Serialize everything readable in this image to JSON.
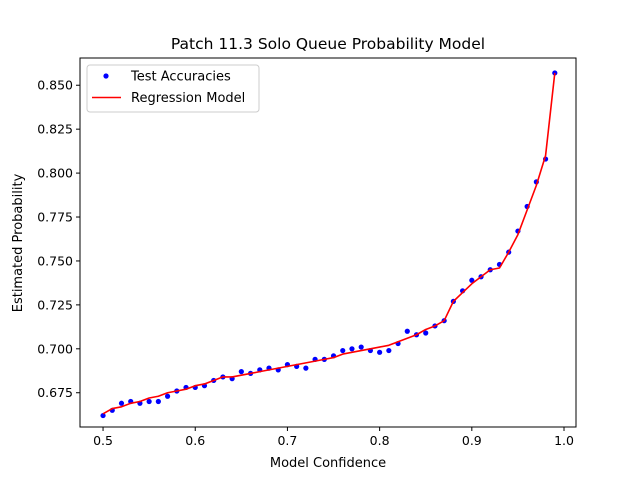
{
  "chart_data": {
    "type": "scatter",
    "title": "Patch 11.3 Solo Queue Probability Model",
    "xlabel": "Model Confidence",
    "ylabel": "Estimated Probability",
    "xlim": [
      0.475,
      1.013
    ],
    "ylim": [
      0.6555,
      0.8655
    ],
    "xticks": [
      "0.5",
      "0.6",
      "0.7",
      "0.8",
      "0.9",
      "1.0"
    ],
    "xtick_values": [
      0.5,
      0.6,
      0.7,
      0.8,
      0.9,
      1.0
    ],
    "yticks": [
      "0.675",
      "0.700",
      "0.725",
      "0.750",
      "0.775",
      "0.800",
      "0.825",
      "0.850"
    ],
    "ytick_values": [
      0.675,
      0.7,
      0.725,
      0.75,
      0.775,
      0.8,
      0.825,
      0.85
    ],
    "grid": false,
    "legend_position": "top-left",
    "series": [
      {
        "name": "Test Accuracies",
        "kind": "points",
        "color": "#0000ff",
        "x": [
          0.5,
          0.51,
          0.52,
          0.53,
          0.54,
          0.55,
          0.56,
          0.57,
          0.58,
          0.59,
          0.6,
          0.61,
          0.62,
          0.63,
          0.64,
          0.65,
          0.66,
          0.67,
          0.68,
          0.69,
          0.7,
          0.71,
          0.72,
          0.73,
          0.74,
          0.75,
          0.76,
          0.77,
          0.78,
          0.79,
          0.8,
          0.81,
          0.82,
          0.83,
          0.84,
          0.85,
          0.86,
          0.87,
          0.88,
          0.89,
          0.9,
          0.91,
          0.92,
          0.93,
          0.94,
          0.95,
          0.96,
          0.97,
          0.98,
          0.99
        ],
        "y": [
          0.662,
          0.665,
          0.669,
          0.67,
          0.669,
          0.67,
          0.67,
          0.673,
          0.676,
          0.678,
          0.678,
          0.679,
          0.682,
          0.684,
          0.683,
          0.687,
          0.686,
          0.688,
          0.689,
          0.688,
          0.691,
          0.69,
          0.689,
          0.694,
          0.694,
          0.696,
          0.699,
          0.7,
          0.701,
          0.699,
          0.698,
          0.699,
          0.703,
          0.71,
          0.708,
          0.709,
          0.713,
          0.716,
          0.727,
          0.733,
          0.739,
          0.741,
          0.745,
          0.748,
          0.755,
          0.767,
          0.781,
          0.795,
          0.808,
          0.857
        ]
      },
      {
        "name": "Regression Model",
        "kind": "line",
        "color": "#ff0000",
        "x": [
          0.5,
          0.51,
          0.52,
          0.53,
          0.54,
          0.55,
          0.56,
          0.57,
          0.58,
          0.59,
          0.6,
          0.61,
          0.62,
          0.63,
          0.64,
          0.65,
          0.66,
          0.67,
          0.68,
          0.69,
          0.7,
          0.71,
          0.72,
          0.73,
          0.74,
          0.75,
          0.76,
          0.77,
          0.78,
          0.79,
          0.8,
          0.81,
          0.82,
          0.83,
          0.84,
          0.85,
          0.86,
          0.87,
          0.88,
          0.89,
          0.9,
          0.91,
          0.92,
          0.93,
          0.94,
          0.95,
          0.96,
          0.97,
          0.98,
          0.99
        ],
        "y": [
          0.663,
          0.666,
          0.667,
          0.669,
          0.67,
          0.672,
          0.673,
          0.675,
          0.676,
          0.677,
          0.679,
          0.68,
          0.682,
          0.684,
          0.684,
          0.685,
          0.686,
          0.687,
          0.688,
          0.689,
          0.69,
          0.691,
          0.692,
          0.693,
          0.694,
          0.695,
          0.697,
          0.698,
          0.699,
          0.7,
          0.701,
          0.702,
          0.704,
          0.706,
          0.708,
          0.711,
          0.713,
          0.716,
          0.727,
          0.732,
          0.737,
          0.741,
          0.745,
          0.746,
          0.755,
          0.765,
          0.779,
          0.793,
          0.81,
          0.857
        ]
      }
    ]
  }
}
